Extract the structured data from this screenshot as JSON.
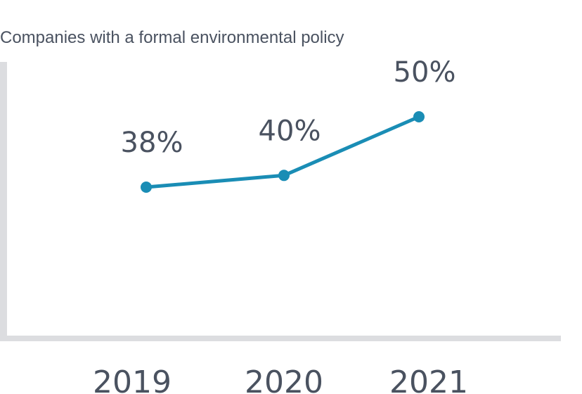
{
  "chart_data": {
    "type": "line",
    "title": "Companies with a formal environmental policy",
    "categories": [
      "2019",
      "2020",
      "2021"
    ],
    "series": [
      {
        "values": [
          38,
          40,
          50
        ],
        "labels": [
          "38%",
          "40%",
          "50%"
        ],
        "color": "#1a8db5"
      }
    ],
    "xlabel": "",
    "ylabel": "",
    "ylim": [
      20,
      60
    ],
    "grid": false,
    "legend": "none",
    "axis_color": "#dcdde0",
    "text_color": "#4a5260"
  }
}
